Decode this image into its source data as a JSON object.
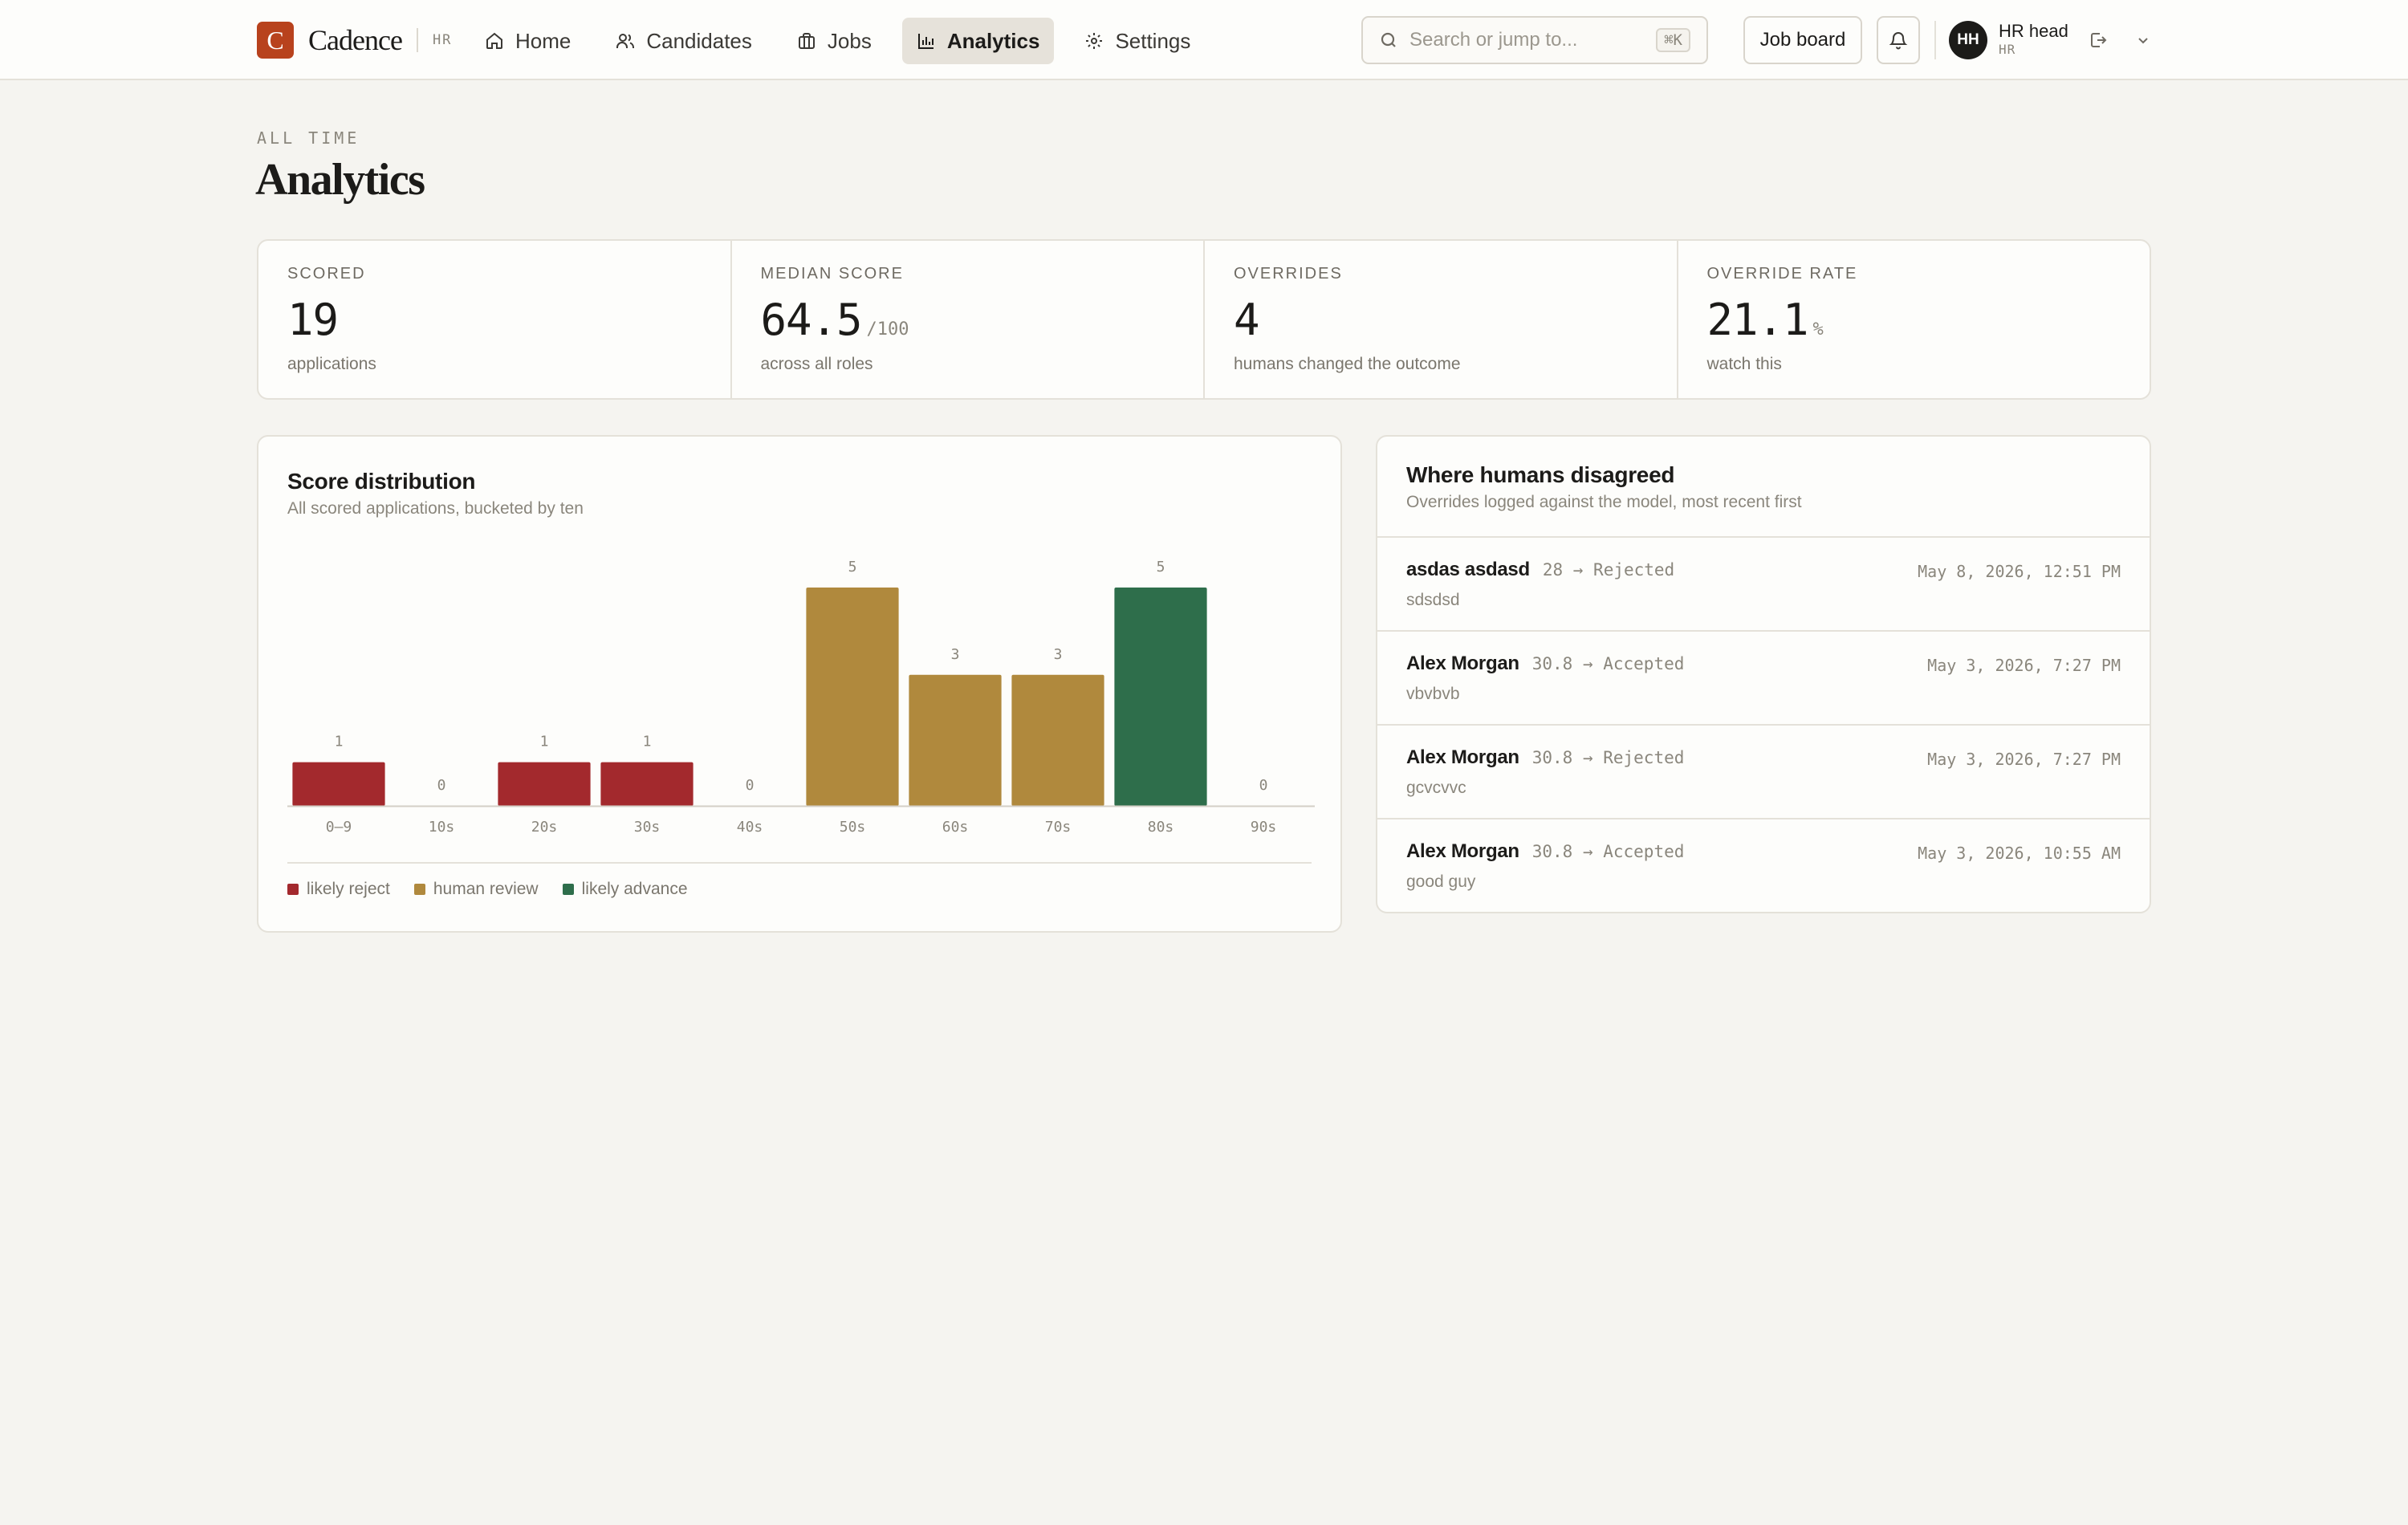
{
  "app": {
    "brand_initial": "C",
    "brand_name": "Cadence",
    "brand_role": "HR"
  },
  "nav": [
    {
      "label": "Home",
      "icon": "home-icon",
      "active": false
    },
    {
      "label": "Candidates",
      "icon": "users-icon",
      "active": false
    },
    {
      "label": "Jobs",
      "icon": "briefcase-icon",
      "active": false
    },
    {
      "label": "Analytics",
      "icon": "bar-chart-icon",
      "active": true
    },
    {
      "label": "Settings",
      "icon": "gear-icon",
      "active": false
    }
  ],
  "search": {
    "placeholder": "Search or jump to...",
    "shortcut": "⌘K"
  },
  "toolbar": {
    "job_board_label": "Job board"
  },
  "user": {
    "initials": "HH",
    "name": "HR head",
    "role": "HR"
  },
  "header": {
    "eyebrow": "ALL TIME",
    "title": "Analytics"
  },
  "stats": [
    {
      "label": "SCORED",
      "value": "19",
      "suffix": "",
      "note": "applications"
    },
    {
      "label": "MEDIAN SCORE",
      "value": "64.5",
      "suffix": "/100",
      "note": "across all roles"
    },
    {
      "label": "OVERRIDES",
      "value": "4",
      "suffix": "",
      "note": "humans changed the outcome"
    },
    {
      "label": "OVERRIDE RATE",
      "value": "21.1",
      "suffix": "%",
      "note": "watch this"
    }
  ],
  "distribution": {
    "title": "Score distribution",
    "subtitle": "All scored applications, bucketed by ten"
  },
  "chart_data": {
    "type": "bar",
    "title": "Score distribution",
    "subtitle": "All scored applications, bucketed by ten",
    "categories": [
      "0–9",
      "10s",
      "20s",
      "30s",
      "40s",
      "50s",
      "60s",
      "70s",
      "80s",
      "90s"
    ],
    "values": [
      1,
      0,
      1,
      1,
      0,
      5,
      3,
      3,
      5,
      0
    ],
    "bar_groups": [
      "likely reject",
      "likely reject",
      "likely reject",
      "likely reject",
      "likely reject",
      "human review",
      "human review",
      "human review",
      "likely advance",
      "likely advance"
    ],
    "legend": [
      {
        "name": "likely reject",
        "color": "#a3292d"
      },
      {
        "name": "human review",
        "color": "#b0893d"
      },
      {
        "name": "likely advance",
        "color": "#2e6e4b"
      }
    ],
    "legend_position": "bottom-left",
    "ylim": [
      0,
      5
    ],
    "grid": false,
    "xlabel": "",
    "ylabel": ""
  },
  "overrides": {
    "title": "Where humans disagreed",
    "subtitle": "Overrides logged against the model, most recent first",
    "items": [
      {
        "name": "asdas asdasd",
        "change": "28 → Rejected",
        "date": "May 8, 2026, 12:51 PM",
        "note": "sdsdsd"
      },
      {
        "name": "Alex Morgan",
        "change": "30.8 → Accepted",
        "date": "May 3, 2026, 7:27 PM",
        "note": "vbvbvb"
      },
      {
        "name": "Alex Morgan",
        "change": "30.8 → Rejected",
        "date": "May 3, 2026, 7:27 PM",
        "note": "gcvcvvc"
      },
      {
        "name": "Alex Morgan",
        "change": "30.8 → Accepted",
        "date": "May 3, 2026, 10:55 AM",
        "note": "good guy"
      }
    ]
  }
}
